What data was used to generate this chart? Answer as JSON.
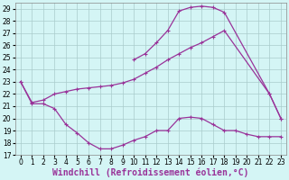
{
  "xlabel": "Windchill (Refroidissement éolien,°C)",
  "ylim": [
    17,
    29.5
  ],
  "xlim": [
    -0.5,
    23.5
  ],
  "yticks": [
    17,
    18,
    19,
    20,
    21,
    22,
    23,
    24,
    25,
    26,
    27,
    28,
    29
  ],
  "xticks": [
    0,
    1,
    2,
    3,
    4,
    5,
    6,
    7,
    8,
    9,
    10,
    11,
    12,
    13,
    14,
    15,
    16,
    17,
    18,
    19,
    20,
    21,
    22,
    23
  ],
  "color": "#993399",
  "bg_color": "#d4f5f5",
  "grid_color": "#aacccc",
  "line_lower_x": [
    0,
    1,
    2,
    3,
    4,
    5,
    6,
    7,
    8,
    9,
    10,
    11,
    12,
    13,
    14,
    15,
    16,
    17,
    18,
    19,
    20,
    21,
    22,
    23
  ],
  "line_lower_y": [
    23,
    21.2,
    21.2,
    20.8,
    19.5,
    18.8,
    18.0,
    17.5,
    17.5,
    17.8,
    18.2,
    18.5,
    19.0,
    19.0,
    20.0,
    20.1,
    20.0,
    19.5,
    19.0,
    19.0,
    18.7,
    18.5,
    18.5,
    18.5
  ],
  "line_mid_x": [
    0,
    1,
    2,
    3,
    4,
    5,
    6,
    7,
    8,
    9,
    10,
    11,
    12,
    13,
    14,
    15,
    16,
    17,
    18,
    22,
    23
  ],
  "line_mid_y": [
    23,
    21.3,
    21.5,
    22.0,
    22.2,
    22.4,
    22.5,
    22.6,
    22.7,
    22.9,
    23.2,
    23.7,
    24.2,
    24.8,
    25.3,
    25.8,
    26.2,
    26.7,
    27.2,
    22.0,
    20.0
  ],
  "line_upper_x": [
    10,
    11,
    12,
    13,
    14,
    15,
    16,
    17,
    18,
    22,
    23
  ],
  "line_upper_y": [
    24.8,
    25.3,
    26.2,
    27.2,
    28.8,
    29.1,
    29.2,
    29.1,
    28.7,
    22.0,
    20.0
  ],
  "xlabel_fontsize": 7,
  "tick_fontsize": 5.5,
  "lw": 0.9,
  "ms": 3.0
}
